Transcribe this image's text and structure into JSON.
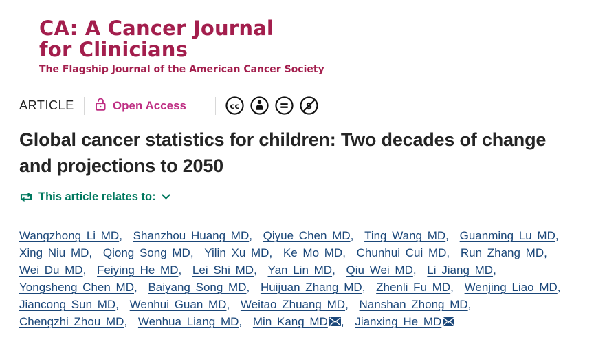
{
  "journal": {
    "name_line1": "CA: A Cancer Journal",
    "name_line2": "for Clinicians",
    "tagline": "The Flagship Journal of the American Cancer Society"
  },
  "meta": {
    "article_type_label": "ARTICLE",
    "open_access_label": "Open Access",
    "license_icons": [
      "cc-icon",
      "cc-by-attribution-icon",
      "cc-nd-no-derivatives-icon",
      "cc-nc-non-commercial-icon"
    ]
  },
  "article": {
    "title": "Global cancer statistics for children: Two decades of change and projections to 2050",
    "relates_to_label": "This article relates to:"
  },
  "authors": [
    {
      "name": "Wangzhong Li MD"
    },
    {
      "name": "Shanzhou Huang MD"
    },
    {
      "name": "Qiyue Chen MD"
    },
    {
      "name": "Ting Wang MD"
    },
    {
      "name": "Guanming Lu MD",
      "break_after": true
    },
    {
      "name": "Xing Niu MD"
    },
    {
      "name": "Qiong Song MD"
    },
    {
      "name": "Yilin Xu MD"
    },
    {
      "name": "Ke Mo MD"
    },
    {
      "name": "Chunhui Cui MD"
    },
    {
      "name": "Run Zhang MD",
      "break_after": true
    },
    {
      "name": "Wei Du MD"
    },
    {
      "name": "Feiying He MD"
    },
    {
      "name": "Lei Shi MD"
    },
    {
      "name": "Yan Lin MD"
    },
    {
      "name": "Qiu Wei MD"
    },
    {
      "name": "Li Jiang MD",
      "break_after": true
    },
    {
      "name": "Yongsheng Chen MD"
    },
    {
      "name": "Baiyang Song MD"
    },
    {
      "name": "Huijuan Zhang MD"
    },
    {
      "name": "Zhenli Fu MD"
    },
    {
      "name": "Wenjing Liao MD",
      "break_after": true
    },
    {
      "name": "Jiancong Sun MD"
    },
    {
      "name": "Wenhui Guan MD"
    },
    {
      "name": "Weitao Zhuang MD"
    },
    {
      "name": "Nanshan Zhong MD",
      "break_after": true
    },
    {
      "name": "Chengzhi Zhou MD"
    },
    {
      "name": "Wenhua Liang MD"
    },
    {
      "name": "Min Kang MD",
      "email": true
    },
    {
      "name": "Jianxing He MD",
      "email": true
    }
  ],
  "colors": {
    "journal_brand_maroon": "#A31E4D",
    "open_access_pink": "#BE2E83",
    "relates_green": "#00785E",
    "author_link_blue": "#1B4779",
    "title_ink": "#252525"
  }
}
